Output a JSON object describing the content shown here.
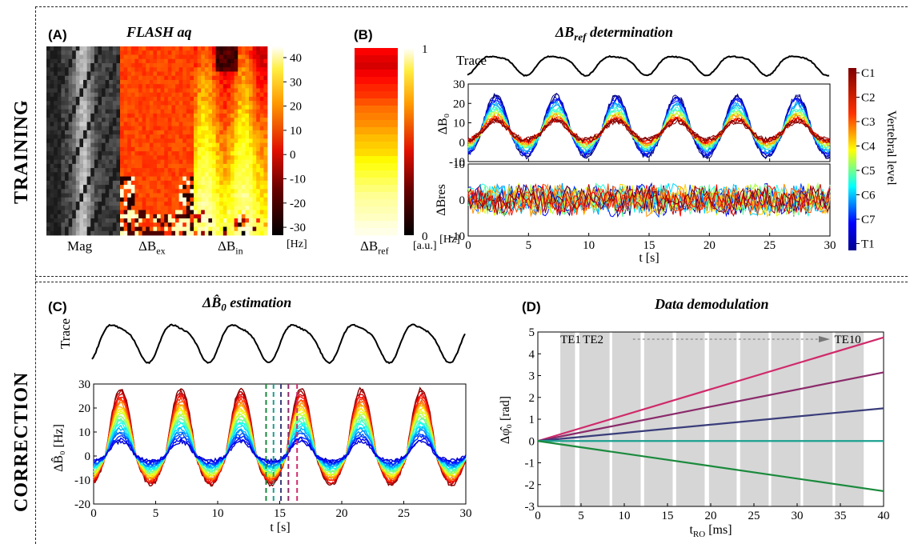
{
  "sections": {
    "training": "TRAINING",
    "correction": "CORRECTION"
  },
  "panelA": {
    "label": "(A)",
    "title": "FLASH aq",
    "images": [
      "Mag",
      "ΔB",
      "ΔB"
    ],
    "image_subs": [
      "",
      "ex",
      "in"
    ],
    "colorbar_ticks": [
      "40",
      "30",
      "20",
      "10",
      "0",
      "-10",
      "-20",
      "-30"
    ],
    "unit": "[Hz]"
  },
  "panelB": {
    "label": "(B)",
    "title": "ΔB",
    "title_sub": "ref",
    "title_rest": " determination",
    "ref_label": "ΔB",
    "ref_sub": "ref",
    "ref_ticks": [
      "1",
      "0"
    ],
    "ref_unit": "[a.u.]",
    "trace_label": "Trace",
    "colorbar_title": "Vertebral level",
    "levels": [
      "C1",
      "C2",
      "C3",
      "C4",
      "C5",
      "C6",
      "C7",
      "T1"
    ]
  },
  "panelC": {
    "label": "(C)",
    "title": "estimation",
    "trace_label": "Trace",
    "hz_unit": "[Hz]"
  },
  "panelD": {
    "label": "(D)",
    "title": "Data demodulation",
    "te_first": "TE1",
    "te_second": "TE2",
    "te_last": "TE10",
    "ylabel_unit": "[rad]",
    "xlabel": "t",
    "xlabel_sub": "RO",
    "xlabel_unit": " [ms]"
  },
  "chart_data": [
    {
      "type": "line",
      "id": "B-trace",
      "ylabel": "Trace",
      "x_range": [
        0,
        30
      ],
      "period_s": 5.0
    },
    {
      "type": "line",
      "id": "B-dB0",
      "ylabel": "ΔB0",
      "xlim": [
        0,
        30
      ],
      "ylim": [
        -10,
        30
      ],
      "xticks": [
        0,
        5,
        10,
        15,
        20,
        25,
        30
      ],
      "yticks": [
        -10,
        0,
        10,
        20,
        30
      ],
      "series_amplitude_hz": [
        7,
        8,
        10,
        12,
        14,
        17,
        20,
        22
      ],
      "series_names": [
        "C1",
        "C2",
        "C3",
        "C4",
        "C5",
        "C6",
        "C7",
        "T1"
      ],
      "period_s": 5.0
    },
    {
      "type": "line",
      "id": "B-dBres",
      "ylabel": "ΔBres",
      "xlabel": "t [s]",
      "xlim": [
        0,
        30
      ],
      "ylim": [
        -10,
        10
      ],
      "yticks": [
        -10,
        0,
        10
      ],
      "xticks": [
        0,
        5,
        10,
        15,
        20,
        25,
        30
      ],
      "period_s": 5.0
    },
    {
      "type": "line",
      "id": "C-trace",
      "ylabel": "Trace",
      "x_range": [
        0,
        30
      ],
      "period_s": 4.85
    },
    {
      "type": "line",
      "id": "C-dB0",
      "xlabel": "t [s]",
      "xlim": [
        0,
        30
      ],
      "ylim": [
        -20,
        30
      ],
      "xticks": [
        0,
        5,
        10,
        15,
        20,
        25,
        30
      ],
      "yticks": [
        -20,
        -10,
        0,
        10,
        20,
        30
      ],
      "period_s": 4.85,
      "peak_amplitude_hz": [
        28,
        24,
        20,
        16,
        12,
        8
      ],
      "vlines_s": [
        13.9,
        14.5,
        15.1,
        15.7,
        16.4
      ],
      "vline_colors": [
        "#1a8a3c",
        "#1aa08f",
        "#3a3d7a",
        "#8b2a6a",
        "#d02a6a"
      ]
    },
    {
      "type": "line",
      "id": "D-phase",
      "xlabel": "tRO [ms]",
      "ylabel": "Δφ0 [rad]",
      "xlim": [
        0,
        40
      ],
      "ylim": [
        -3,
        5
      ],
      "xticks": [
        0,
        5,
        10,
        15,
        20,
        25,
        30,
        35,
        40
      ],
      "yticks": [
        -3,
        -2,
        -1,
        0,
        1,
        2,
        3,
        4,
        5
      ],
      "series": [
        {
          "color": "#d02a6a",
          "end_value": 4.75
        },
        {
          "color": "#8b2a6a",
          "end_value": 3.15
        },
        {
          "color": "#3a3d7a",
          "end_value": 1.5
        },
        {
          "color": "#1aa08f",
          "end_value": 0.0
        },
        {
          "color": "#1a8a3c",
          "end_value": -2.3
        }
      ],
      "echo_windows_ms": [
        [
          2.6,
          4.3
        ],
        [
          4.8,
          8.3
        ],
        [
          8.6,
          11.9
        ],
        [
          12.3,
          15.6
        ],
        [
          16.0,
          19.3
        ],
        [
          19.8,
          23.0
        ],
        [
          23.4,
          26.7
        ],
        [
          27.0,
          30.4
        ],
        [
          30.7,
          34.1
        ],
        [
          34.4,
          37.7
        ]
      ]
    }
  ]
}
